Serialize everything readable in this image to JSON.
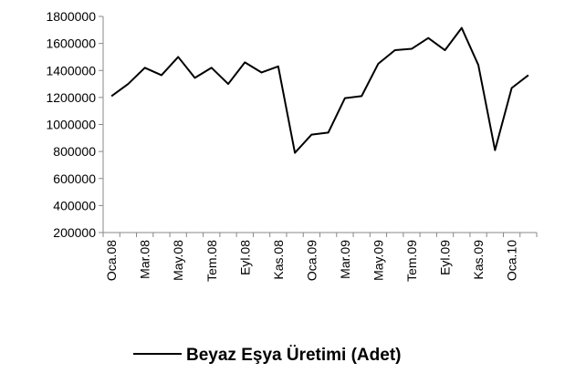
{
  "chart_data": {
    "type": "line",
    "categories": [
      "Oca.08",
      null,
      "Mar.08",
      null,
      "May.08",
      null,
      "Tem.08",
      null,
      "Eyl.08",
      null,
      "Kas.08",
      null,
      "Oca.09",
      null,
      "Mar.09",
      null,
      "May.09",
      null,
      "Tem.09",
      null,
      "Eyl.09",
      null,
      "Kas.09",
      null,
      "Oca.10",
      null
    ],
    "series": [
      {
        "name": "Beyaz Eşya Üretimi (Adet)",
        "color": "#000000",
        "values": [
          1210000,
          1300000,
          1420000,
          1365000,
          1500000,
          1345000,
          1420000,
          1300000,
          1460000,
          1385000,
          1430000,
          790000,
          925000,
          940000,
          1195000,
          1210000,
          1450000,
          1550000,
          1560000,
          1640000,
          1550000,
          1715000,
          1440000,
          810000,
          1270000,
          1365000
        ]
      }
    ],
    "ylim": [
      200000,
      1800000
    ],
    "yticks": [
      200000,
      400000,
      600000,
      800000,
      1000000,
      1200000,
      1400000,
      1600000,
      1800000
    ],
    "legend": "bottom"
  }
}
